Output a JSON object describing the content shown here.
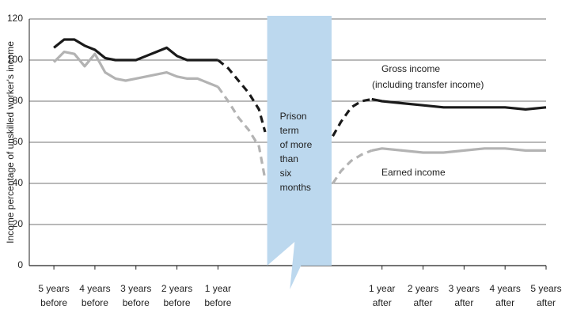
{
  "chart_data": {
    "type": "line",
    "y_label": "Income percentage of unskilled worker's income",
    "x": [
      0,
      0.25,
      0.5,
      0.75,
      1,
      1.25,
      1.5,
      1.75,
      2,
      2.25,
      2.5,
      2.75,
      3,
      3.25,
      3.5,
      3.75,
      4,
      4.25,
      4.5,
      4.75,
      5,
      5.15,
      6,
      6.8,
      7,
      7.25,
      7.5,
      7.75,
      8,
      8.5,
      9,
      9.5,
      10,
      10.5,
      11,
      11.5,
      12
    ],
    "series": [
      {
        "name": "Gross income (including transfer income)",
        "color": "#1a1a1a",
        "values": [
          106,
          110,
          110,
          107,
          105,
          101,
          100,
          100,
          100,
          102,
          104,
          106,
          102,
          100,
          100,
          100,
          100,
          null,
          null,
          null,
          null,
          null,
          null,
          null,
          null,
          null,
          null,
          81,
          80,
          79,
          78,
          77,
          77,
          77,
          77,
          76,
          77
        ],
        "dashed_values": [
          null,
          null,
          null,
          null,
          null,
          null,
          null,
          null,
          null,
          null,
          null,
          null,
          null,
          null,
          null,
          null,
          100,
          96,
          90,
          84,
          76,
          65,
          null,
          63,
          70,
          77,
          80,
          81,
          null,
          null,
          null,
          null,
          null,
          null,
          null,
          null,
          null
        ]
      },
      {
        "name": "Earned income",
        "color": "#b3b3b3",
        "values": [
          99,
          104,
          103,
          97,
          103,
          94,
          91,
          90,
          91,
          92,
          93,
          94,
          92,
          91,
          91,
          89,
          87,
          null,
          null,
          null,
          null,
          null,
          null,
          null,
          null,
          null,
          null,
          56,
          57,
          56,
          55,
          55,
          56,
          57,
          57,
          56,
          56
        ],
        "dashed_values": [
          null,
          null,
          null,
          null,
          null,
          null,
          null,
          null,
          null,
          null,
          null,
          null,
          null,
          null,
          null,
          null,
          87,
          80,
          72,
          66,
          58,
          42,
          null,
          40,
          46,
          51,
          54,
          56,
          null,
          null,
          null,
          null,
          null,
          null,
          null,
          null,
          null
        ]
      }
    ],
    "series_labels": [
      [
        "Gross income",
        "(including transfer income)"
      ],
      [
        "Earned income"
      ]
    ],
    "band": [
      5.2,
      6.77
    ],
    "band_color": "#bcd8ee",
    "band_label": [
      "Prison",
      "term",
      "of more",
      "than",
      "six",
      "months"
    ],
    "xlim": [
      -0.6,
      12
    ],
    "xticks": [
      {
        "value": 0,
        "label": [
          "5 years",
          "before"
        ]
      },
      {
        "value": 1,
        "label": [
          "4 years",
          "before"
        ]
      },
      {
        "value": 2,
        "label": [
          "3 years",
          "before"
        ]
      },
      {
        "value": 3,
        "label": [
          "2 years",
          "before"
        ]
      },
      {
        "value": 4,
        "label": [
          "1 year",
          "before"
        ]
      },
      {
        "value": 8,
        "label": [
          "1 year",
          "after"
        ]
      },
      {
        "value": 9,
        "label": [
          "2 years",
          "after"
        ]
      },
      {
        "value": 10,
        "label": [
          "3 years",
          "after"
        ]
      },
      {
        "value": 11,
        "label": [
          "4 years",
          "after"
        ]
      },
      {
        "value": 12,
        "label": [
          "5 years",
          "after"
        ]
      }
    ],
    "ylim": [
      0,
      120
    ],
    "yticks": [
      0,
      20,
      40,
      60,
      80,
      100,
      120
    ],
    "grid": true
  }
}
